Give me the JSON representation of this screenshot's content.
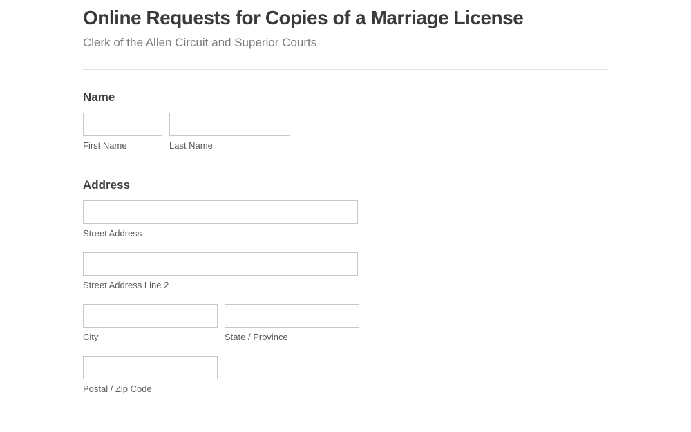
{
  "header": {
    "title": "Online Requests for Copies of a Marriage License",
    "subtitle": "Clerk of the Allen Circuit and Superior Courts"
  },
  "sections": {
    "name": {
      "label": "Name",
      "first_name_label": "First Name",
      "last_name_label": "Last Name",
      "first_name_value": "",
      "last_name_value": ""
    },
    "address": {
      "label": "Address",
      "street1_label": "Street Address",
      "street2_label": "Street Address Line 2",
      "city_label": "City",
      "state_label": "State / Province",
      "postal_label": "Postal / Zip Code",
      "street1_value": "",
      "street2_value": "",
      "city_value": "",
      "state_value": "",
      "postal_value": ""
    }
  },
  "colors": {
    "title": "#3a3a3a",
    "subtitle": "#7a7a7a",
    "section_label": "#3f3f3f",
    "sublabel": "#5a5a5a",
    "input_border": "#c8c8c8",
    "divider": "#e0e0e0",
    "background": "#ffffff"
  }
}
